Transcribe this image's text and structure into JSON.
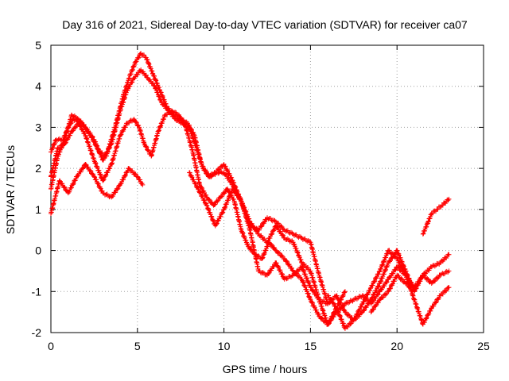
{
  "chart_data": {
    "type": "scatter",
    "title": "Day 316 of 2021, Sidereal Day-to-day VTEC variation (SDTVAR) for receiver ca07",
    "xlabel": "GPS time / hours",
    "ylabel": "SDTVAR / TECUs",
    "xlim": [
      0,
      25
    ],
    "ylim": [
      -2,
      5
    ],
    "xticks": [
      0,
      5,
      10,
      15,
      20,
      25
    ],
    "yticks": [
      -2,
      -1,
      0,
      1,
      2,
      3,
      4,
      5
    ],
    "grid": true,
    "marker": "+",
    "color": "#ff0000",
    "series": [
      {
        "x": [
          0,
          0.3,
          0.7,
          1.0,
          1.3,
          1.8,
          2.3,
          2.8,
          3.2,
          3.7,
          4.2,
          4.6,
          4.9,
          5.2,
          5.5,
          5.9,
          6.3,
          6.7,
          7.1,
          7.5,
          7.9,
          8.3,
          8.7,
          9.1,
          9.5,
          10.0,
          10.5,
          11.0,
          11.5,
          12.0,
          12.5,
          13.0,
          13.5,
          14.0,
          14.5,
          15.0,
          15.5,
          16.0
        ],
        "y": [
          2.4,
          2.7,
          2.7,
          3.0,
          3.2,
          3.1,
          2.8,
          2.4,
          2.3,
          3.0,
          3.8,
          4.3,
          4.6,
          4.8,
          4.7,
          4.3,
          3.9,
          3.5,
          3.3,
          3.2,
          3.1,
          2.8,
          2.1,
          1.8,
          1.9,
          2.1,
          1.7,
          1.2,
          0.6,
          0.5,
          0.8,
          0.7,
          0.5,
          0.4,
          0.3,
          0.2,
          -0.6,
          -1.3
        ]
      },
      {
        "x": [
          0,
          0.4,
          0.8,
          1.2,
          1.6,
          2.0,
          2.5,
          3.0,
          3.5,
          4.0,
          4.4,
          4.8,
          5.2,
          5.6,
          6.0,
          6.4,
          6.8,
          7.2,
          7.6,
          8.0,
          8.4,
          8.8,
          9.2,
          9.6,
          10.0,
          10.5,
          11.0,
          11.5,
          12.0,
          12.5,
          13.0,
          13.5,
          14.0,
          14.5,
          15.0,
          15.5,
          16.0,
          16.5,
          17.0
        ],
        "y": [
          1.5,
          2.3,
          2.7,
          3.3,
          3.2,
          3.0,
          2.7,
          2.2,
          2.6,
          3.4,
          3.9,
          4.2,
          4.4,
          4.2,
          4.0,
          3.6,
          3.4,
          3.2,
          3.1,
          3.0,
          2.5,
          2.0,
          1.8,
          1.9,
          1.9,
          1.6,
          1.2,
          0.7,
          0.4,
          0.2,
          0.6,
          0.3,
          0.2,
          -0.3,
          -0.5,
          -1.2,
          -1.8,
          -1.4,
          -1.0
        ]
      },
      {
        "x": [
          0,
          0.4,
          0.8,
          1.2,
          1.6,
          2.0,
          2.5,
          3.0,
          3.5,
          4.0,
          4.4,
          4.8,
          5.1,
          5.4,
          5.8,
          6.2,
          6.6,
          7.0,
          7.4,
          7.8,
          8.2,
          8.6,
          9.0,
          9.4,
          9.8,
          10.2,
          10.6,
          11.0,
          11.4,
          11.8,
          12.2,
          12.6,
          13.0,
          13.5,
          14.0,
          14.5,
          15.0,
          15.5,
          16.0,
          16.5,
          17.0
        ],
        "y": [
          1.8,
          2.5,
          2.6,
          2.9,
          3.1,
          2.8,
          2.2,
          1.7,
          2.1,
          2.8,
          3.1,
          3.2,
          3.0,
          2.6,
          2.3,
          2.9,
          3.3,
          3.4,
          3.3,
          3.0,
          2.4,
          1.6,
          1.3,
          1.1,
          1.3,
          1.5,
          1.2,
          0.5,
          0.1,
          -0.1,
          -0.2,
          0.2,
          0.0,
          -0.2,
          -0.5,
          -0.7,
          -1.2,
          -1.6,
          -1.8,
          -1.5,
          -1.3
        ]
      },
      {
        "x": [
          0,
          0.5,
          1.0,
          1.5,
          2.0,
          2.5,
          3.0,
          3.5,
          4.0,
          4.5,
          5.0,
          5.3
        ],
        "y": [
          0.9,
          1.7,
          1.4,
          1.8,
          2.1,
          1.8,
          1.4,
          1.3,
          1.6,
          2.0,
          1.8,
          1.6
        ]
      },
      {
        "x": [
          8.0,
          8.5,
          9.0,
          9.5,
          10.0,
          10.5,
          11.0,
          11.5,
          12.0,
          12.5,
          13.0,
          13.5,
          14.0,
          14.5,
          15.0,
          15.5,
          16.0,
          16.5,
          17.0,
          17.5,
          18.0,
          18.5,
          19.0,
          19.5,
          20.0,
          20.5,
          21.0
        ],
        "y": [
          1.9,
          1.5,
          1.1,
          0.6,
          1.0,
          1.5,
          1.2,
          0.5,
          -0.5,
          -0.6,
          -0.3,
          -0.7,
          -0.6,
          -0.4,
          -0.9,
          -1.2,
          -1.3,
          -1.1,
          -1.5,
          -1.7,
          -1.5,
          -1.2,
          -0.8,
          -0.3,
          0.0,
          -0.5,
          -1.0
        ]
      },
      {
        "x": [
          16.0,
          16.5,
          17.0,
          17.5,
          18.0,
          18.5,
          19.0,
          19.5,
          20.0,
          20.5,
          21.0,
          21.5,
          22.0,
          22.5,
          23.0
        ],
        "y": [
          -1.1,
          -1.4,
          -1.9,
          -1.7,
          -1.3,
          -0.9,
          -0.5,
          0.0,
          -0.2,
          -0.6,
          -1.2,
          -1.8,
          -1.4,
          -1.1,
          -0.9
        ]
      },
      {
        "x": [
          17.0,
          17.5,
          18.0,
          18.5,
          19.0,
          19.5,
          20.0,
          20.5,
          21.0,
          21.5,
          22.0,
          22.5,
          23.0
        ],
        "y": [
          -1.3,
          -1.2,
          -1.1,
          -1.3,
          -1.0,
          -0.7,
          -0.4,
          -0.6,
          -0.9,
          -0.6,
          -0.4,
          -0.3,
          -0.1
        ]
      },
      {
        "x": [
          18.5,
          19.0,
          19.5,
          20.0,
          20.5,
          21.0,
          21.5,
          22.0,
          22.5,
          23.0
        ],
        "y": [
          -1.5,
          -1.2,
          -1.0,
          -0.6,
          -0.8,
          -1.0,
          -0.6,
          -0.8,
          -0.6,
          -0.5
        ]
      },
      {
        "x": [
          21.5,
          21.8,
          22.0,
          22.3,
          22.6,
          23.0
        ],
        "y": [
          0.4,
          0.7,
          0.9,
          1.0,
          1.1,
          1.25
        ]
      }
    ]
  }
}
